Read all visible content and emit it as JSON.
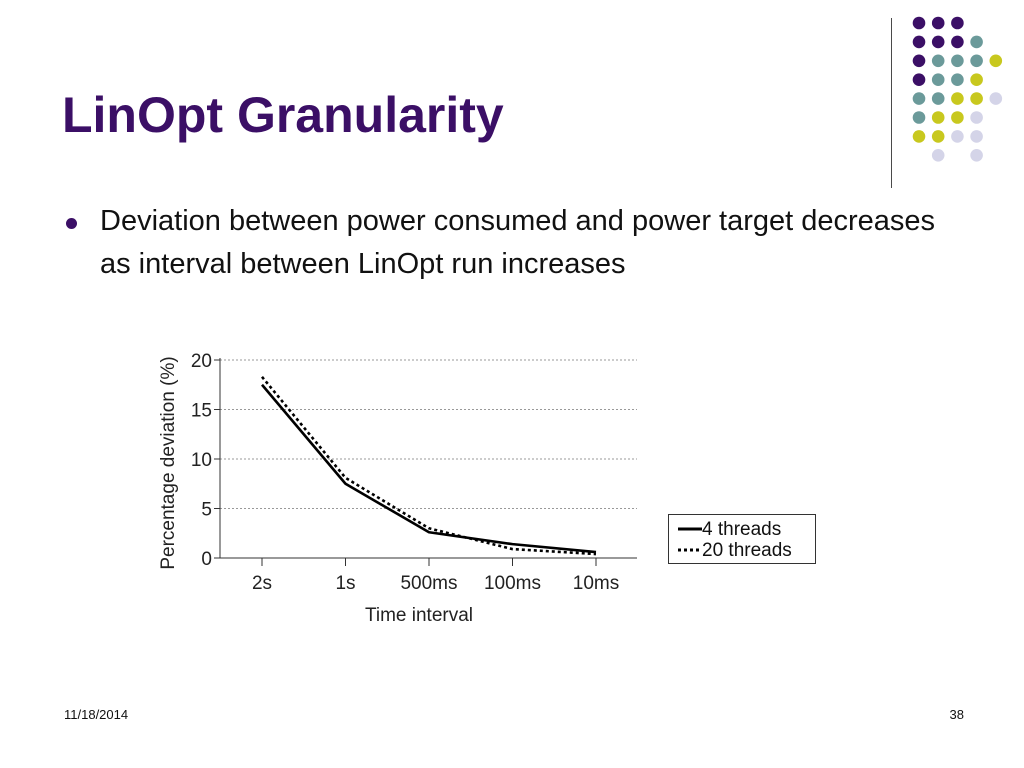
{
  "slide": {
    "title": "LinOpt Granularity",
    "bullets": [
      "Deviation between power consumed and power target decreases as interval between LinOpt run increases"
    ],
    "footer_date": "11/18/2014",
    "page_number": "38"
  },
  "colors": {
    "title": "#3b0f66",
    "purple": "#3b0f66",
    "teal": "#6b9a9a",
    "yellow": "#c8c81e",
    "lavender": "#d4d4e8"
  },
  "decor_dots": [
    [
      "purple",
      "purple",
      "purple",
      null,
      null
    ],
    [
      "purple",
      "purple",
      "purple",
      "teal",
      null
    ],
    [
      "purple",
      "teal",
      "teal",
      "teal",
      "yellow"
    ],
    [
      "purple",
      "teal",
      "teal",
      "yellow",
      null
    ],
    [
      "teal",
      "teal",
      "yellow",
      "yellow",
      "lavender"
    ],
    [
      "teal",
      "yellow",
      "yellow",
      "lavender",
      null
    ],
    [
      "yellow",
      "yellow",
      "lavender",
      "lavender",
      null
    ],
    [
      null,
      "lavender",
      null,
      "lavender",
      null
    ]
  ],
  "chart_data": {
    "type": "line",
    "title": "",
    "xlabel": "Time interval",
    "ylabel": "Percentage deviation (%)",
    "categories": [
      "2s",
      "1s",
      "500ms",
      "100ms",
      "10ms"
    ],
    "ylim": [
      0,
      20
    ],
    "yticks": [
      0,
      5,
      10,
      15,
      20
    ],
    "grid": true,
    "legend_position": "right",
    "series": [
      {
        "name": "4 threads",
        "style": "solid",
        "values": [
          17.5,
          7.5,
          2.6,
          1.4,
          0.6
        ]
      },
      {
        "name": "20 threads",
        "style": "dotted",
        "values": [
          18.3,
          8.1,
          3.0,
          0.9,
          0.4
        ]
      }
    ]
  }
}
